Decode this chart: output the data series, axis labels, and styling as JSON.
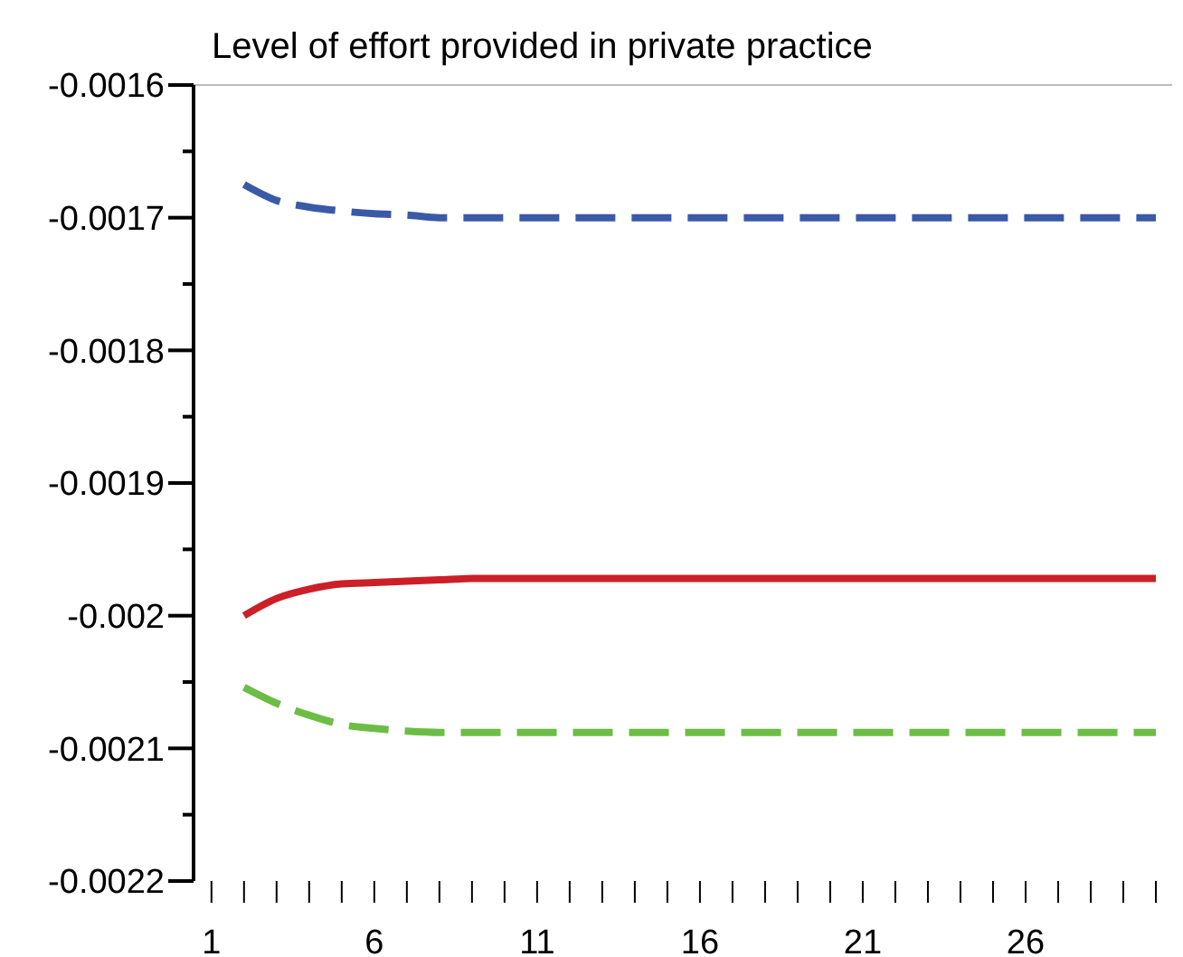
{
  "chart_data": {
    "type": "line",
    "title": "Level of effort provided in private practice",
    "x": [
      2,
      3,
      4,
      5,
      6,
      7,
      8,
      9,
      10,
      11,
      12,
      13,
      14,
      15,
      16,
      17,
      18,
      19,
      20,
      21,
      22,
      23,
      24,
      25,
      26,
      27,
      28,
      29,
      30
    ],
    "series": [
      {
        "color": "#3a5aa8",
        "line_style": "dashed",
        "values": [
          -0.001675,
          -0.001687,
          -0.001692,
          -0.001695,
          -0.001697,
          -0.001698,
          -0.0017,
          -0.0017,
          -0.0017,
          -0.0017,
          -0.0017,
          -0.0017,
          -0.0017,
          -0.0017,
          -0.0017,
          -0.0017,
          -0.0017,
          -0.0017,
          -0.0017,
          -0.0017,
          -0.0017,
          -0.0017,
          -0.0017,
          -0.0017,
          -0.0017,
          -0.0017,
          -0.0017,
          -0.0017,
          -0.0017
        ]
      },
      {
        "color": "#cc1f27",
        "line_style": "solid",
        "values": [
          -0.002,
          -0.001987,
          -0.00198,
          -0.001976,
          -0.001975,
          -0.001974,
          -0.001973,
          -0.001972,
          -0.001972,
          -0.001972,
          -0.001972,
          -0.001972,
          -0.001972,
          -0.001972,
          -0.001972,
          -0.001972,
          -0.001972,
          -0.001972,
          -0.001972,
          -0.001972,
          -0.001972,
          -0.001972,
          -0.001972,
          -0.001972,
          -0.001972,
          -0.001972,
          -0.001972,
          -0.001972,
          -0.001972
        ]
      },
      {
        "color": "#6cbd45",
        "line_style": "dashed",
        "values": [
          -0.002054,
          -0.002066,
          -0.002075,
          -0.002082,
          -0.002085,
          -0.002087,
          -0.002088,
          -0.002088,
          -0.002088,
          -0.002088,
          -0.002088,
          -0.002088,
          -0.002088,
          -0.002088,
          -0.002088,
          -0.002088,
          -0.002088,
          -0.002088,
          -0.002088,
          -0.002088,
          -0.002088,
          -0.002088,
          -0.002088,
          -0.002088,
          -0.002088,
          -0.002088,
          -0.002088,
          -0.002088,
          -0.002088
        ]
      }
    ],
    "xlim": [
      0.45,
      30.5
    ],
    "xticks": [
      1,
      {
        "value": 2,
        "label": null
      },
      {
        "value": 3,
        "label": null
      },
      {
        "value": 4,
        "label": null
      },
      {
        "value": 5,
        "label": null
      },
      6,
      {
        "value": 7,
        "label": null
      },
      {
        "value": 8,
        "label": null
      },
      {
        "value": 9,
        "label": null
      },
      {
        "value": 10,
        "label": null
      },
      11,
      {
        "value": 12,
        "label": null
      },
      {
        "value": 13,
        "label": null
      },
      {
        "value": 14,
        "label": null
      },
      {
        "value": 15,
        "label": null
      },
      16,
      {
        "value": 17,
        "label": null
      },
      {
        "value": 18,
        "label": null
      },
      {
        "value": 19,
        "label": null
      },
      {
        "value": 20,
        "label": null
      },
      21,
      {
        "value": 22,
        "label": null
      },
      {
        "value": 23,
        "label": null
      },
      {
        "value": 24,
        "label": null
      },
      {
        "value": 25,
        "label": null
      },
      26,
      {
        "value": 27,
        "label": null
      },
      {
        "value": 28,
        "label": null
      },
      {
        "value": 29,
        "label": null
      },
      {
        "value": 30,
        "label": null
      }
    ],
    "ylim": [
      -0.0022,
      -0.0016
    ],
    "yticks": [
      -0.0022,
      {
        "value": -0.00215,
        "label": null
      },
      -0.0021,
      {
        "value": -0.00205,
        "label": null
      },
      -0.002,
      {
        "value": -0.00195,
        "label": null
      },
      -0.0019,
      {
        "value": -0.00185,
        "label": null
      },
      -0.0018,
      {
        "value": -0.00175,
        "label": null
      },
      -0.0017,
      {
        "value": -0.00165,
        "label": null
      },
      -0.0016
    ],
    "grid": false,
    "marker": "none"
  }
}
